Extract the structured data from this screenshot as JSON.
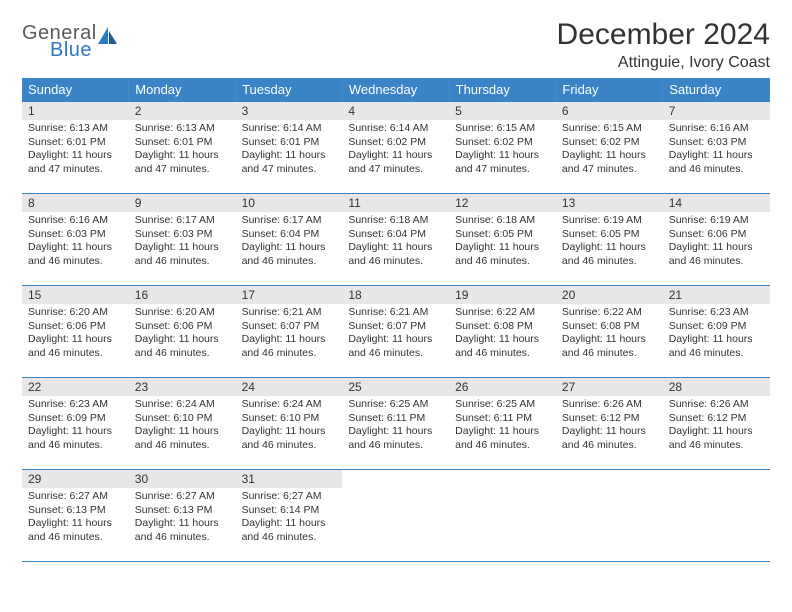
{
  "brand": {
    "line1": "General",
    "line2": "Blue"
  },
  "title": "December 2024",
  "subtitle": "Attinguie, Ivory Coast",
  "colors": {
    "header_bg": "#3b83c7",
    "header_fg": "#ffffff",
    "daynum_bg": "#e7e7e7",
    "rule": "#3b83c7",
    "brand_gray": "#5a5a5a",
    "brand_blue": "#2f78c4"
  },
  "weekdays": [
    "Sunday",
    "Monday",
    "Tuesday",
    "Wednesday",
    "Thursday",
    "Friday",
    "Saturday"
  ],
  "weeks": [
    [
      {
        "n": "1",
        "sr": "6:13 AM",
        "ss": "6:01 PM",
        "dl": "11 hours and 47 minutes."
      },
      {
        "n": "2",
        "sr": "6:13 AM",
        "ss": "6:01 PM",
        "dl": "11 hours and 47 minutes."
      },
      {
        "n": "3",
        "sr": "6:14 AM",
        "ss": "6:01 PM",
        "dl": "11 hours and 47 minutes."
      },
      {
        "n": "4",
        "sr": "6:14 AM",
        "ss": "6:02 PM",
        "dl": "11 hours and 47 minutes."
      },
      {
        "n": "5",
        "sr": "6:15 AM",
        "ss": "6:02 PM",
        "dl": "11 hours and 47 minutes."
      },
      {
        "n": "6",
        "sr": "6:15 AM",
        "ss": "6:02 PM",
        "dl": "11 hours and 47 minutes."
      },
      {
        "n": "7",
        "sr": "6:16 AM",
        "ss": "6:03 PM",
        "dl": "11 hours and 46 minutes."
      }
    ],
    [
      {
        "n": "8",
        "sr": "6:16 AM",
        "ss": "6:03 PM",
        "dl": "11 hours and 46 minutes."
      },
      {
        "n": "9",
        "sr": "6:17 AM",
        "ss": "6:03 PM",
        "dl": "11 hours and 46 minutes."
      },
      {
        "n": "10",
        "sr": "6:17 AM",
        "ss": "6:04 PM",
        "dl": "11 hours and 46 minutes."
      },
      {
        "n": "11",
        "sr": "6:18 AM",
        "ss": "6:04 PM",
        "dl": "11 hours and 46 minutes."
      },
      {
        "n": "12",
        "sr": "6:18 AM",
        "ss": "6:05 PM",
        "dl": "11 hours and 46 minutes."
      },
      {
        "n": "13",
        "sr": "6:19 AM",
        "ss": "6:05 PM",
        "dl": "11 hours and 46 minutes."
      },
      {
        "n": "14",
        "sr": "6:19 AM",
        "ss": "6:06 PM",
        "dl": "11 hours and 46 minutes."
      }
    ],
    [
      {
        "n": "15",
        "sr": "6:20 AM",
        "ss": "6:06 PM",
        "dl": "11 hours and 46 minutes."
      },
      {
        "n": "16",
        "sr": "6:20 AM",
        "ss": "6:06 PM",
        "dl": "11 hours and 46 minutes."
      },
      {
        "n": "17",
        "sr": "6:21 AM",
        "ss": "6:07 PM",
        "dl": "11 hours and 46 minutes."
      },
      {
        "n": "18",
        "sr": "6:21 AM",
        "ss": "6:07 PM",
        "dl": "11 hours and 46 minutes."
      },
      {
        "n": "19",
        "sr": "6:22 AM",
        "ss": "6:08 PM",
        "dl": "11 hours and 46 minutes."
      },
      {
        "n": "20",
        "sr": "6:22 AM",
        "ss": "6:08 PM",
        "dl": "11 hours and 46 minutes."
      },
      {
        "n": "21",
        "sr": "6:23 AM",
        "ss": "6:09 PM",
        "dl": "11 hours and 46 minutes."
      }
    ],
    [
      {
        "n": "22",
        "sr": "6:23 AM",
        "ss": "6:09 PM",
        "dl": "11 hours and 46 minutes."
      },
      {
        "n": "23",
        "sr": "6:24 AM",
        "ss": "6:10 PM",
        "dl": "11 hours and 46 minutes."
      },
      {
        "n": "24",
        "sr": "6:24 AM",
        "ss": "6:10 PM",
        "dl": "11 hours and 46 minutes."
      },
      {
        "n": "25",
        "sr": "6:25 AM",
        "ss": "6:11 PM",
        "dl": "11 hours and 46 minutes."
      },
      {
        "n": "26",
        "sr": "6:25 AM",
        "ss": "6:11 PM",
        "dl": "11 hours and 46 minutes."
      },
      {
        "n": "27",
        "sr": "6:26 AM",
        "ss": "6:12 PM",
        "dl": "11 hours and 46 minutes."
      },
      {
        "n": "28",
        "sr": "6:26 AM",
        "ss": "6:12 PM",
        "dl": "11 hours and 46 minutes."
      }
    ],
    [
      {
        "n": "29",
        "sr": "6:27 AM",
        "ss": "6:13 PM",
        "dl": "11 hours and 46 minutes."
      },
      {
        "n": "30",
        "sr": "6:27 AM",
        "ss": "6:13 PM",
        "dl": "11 hours and 46 minutes."
      },
      {
        "n": "31",
        "sr": "6:27 AM",
        "ss": "6:14 PM",
        "dl": "11 hours and 46 minutes."
      },
      null,
      null,
      null,
      null
    ]
  ],
  "labels": {
    "sunrise": "Sunrise:",
    "sunset": "Sunset:",
    "daylight": "Daylight:"
  }
}
